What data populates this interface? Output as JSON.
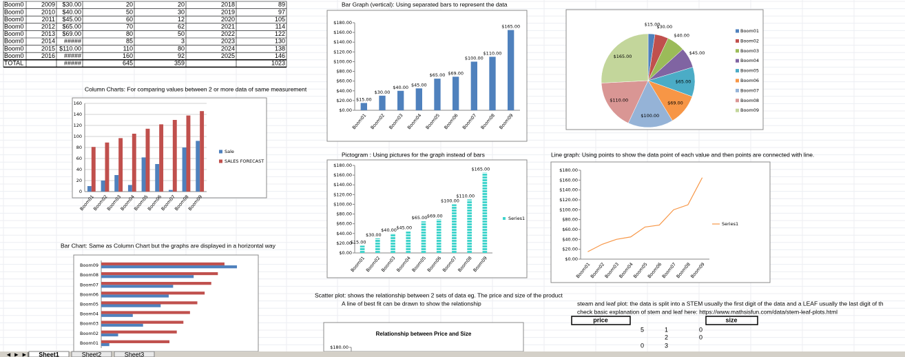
{
  "sheet": {
    "table": {
      "rows": [
        [
          "Boom0",
          "2009",
          "$30.00",
          "20",
          "20",
          "2018",
          "89"
        ],
        [
          "Boom0",
          "2010",
          "$40.00",
          "50",
          "30",
          "2019",
          "97"
        ],
        [
          "Boom0",
          "2011",
          "$45.00",
          "60",
          "12",
          "2020",
          "105"
        ],
        [
          "Boom0",
          "2012",
          "$65.00",
          "70",
          "62",
          "2021",
          "114"
        ],
        [
          "Boom0",
          "2013",
          "$69.00",
          "80",
          "50",
          "2022",
          "122"
        ],
        [
          "Boom0",
          "2014",
          "#####",
          "85",
          "3",
          "2023",
          "130"
        ],
        [
          "Boom0",
          "2015",
          "$110.00",
          "110",
          "80",
          "2024",
          "138"
        ],
        [
          "Boom0",
          "2016",
          "#####",
          "160",
          "92",
          "2025",
          "146"
        ],
        [
          "TOTAL",
          null,
          "#####",
          "645",
          "359",
          null,
          "1023"
        ]
      ]
    },
    "captions": [
      "Column Charts: For comparing values between 2 or more data of same measurement",
      "Bar Graph (vertical): Using separated bars to represent the data",
      "Pictogram : Using pictures for the graph instead of bars",
      "Line graph: Using points to show the data point of each value and then points are connected with line.",
      "Bar Chart: Same as Column Chart but the graphs are displayed in a horizontal way",
      "Scatter plot: shows the relationship between 2 sets of data eg. The price and size of the product",
      "A line of best fit can be drawn to show the relationship",
      "steam and leaf plot: the data is split into a STEM usually the first digit of the data and a LEAF usually the last digit of th",
      "check basic explanation of stem and leaf here: https://www.mathsisfun.com/data/stem-leaf-plots.html"
    ],
    "stem_leaf": {
      "headers": [
        "price",
        "size"
      ],
      "rows": [
        [
          "5",
          "1",
          "0"
        ],
        [
          null,
          "2",
          "0"
        ],
        [
          "0",
          "3",
          null
        ]
      ]
    },
    "tabs": [
      "Sheet1",
      "Sheet2",
      "Sheet3"
    ]
  },
  "chart_data": [
    {
      "type": "bar",
      "categories": [
        "Boom01",
        "Boom02",
        "Boom03",
        "Boom04",
        "Boom05",
        "Boom06",
        "Boom07",
        "Boom08",
        "Boom09"
      ],
      "series": [
        {
          "name": "Sale",
          "color": "#4f81bd",
          "values": [
            10,
            20,
            30,
            12,
            62,
            50,
            3,
            80,
            92
          ]
        },
        {
          "name": "SALES FORECAST",
          "color": "#c0504d",
          "values": [
            81,
            89,
            97,
            105,
            114,
            122,
            130,
            138,
            146
          ]
        }
      ],
      "ylim": [
        0,
        160
      ],
      "yticks": [
        0,
        20,
        40,
        60,
        80,
        100,
        120,
        140,
        160
      ],
      "grid": true
    },
    {
      "type": "bar",
      "categories": [
        "Boom01",
        "Boom02",
        "Boom03",
        "Boom04",
        "Boom05",
        "Boom06",
        "Boom07",
        "Boom08",
        "Boom09"
      ],
      "series": [
        {
          "color": "#4f81bd",
          "values": [
            15,
            30,
            40,
            45,
            65,
            69,
            100,
            110,
            165
          ],
          "value_labels": [
            "$15.00",
            "$30.00",
            "$40.00",
            "$45.00",
            "$65.00",
            "$69.00",
            "$100.00",
            "$110.00",
            "$165.00"
          ]
        }
      ],
      "ylim": [
        0,
        180
      ],
      "yticks": [
        {
          "value": 0,
          "label": "$0.00"
        },
        {
          "value": 20,
          "label": "$20.00"
        },
        {
          "value": 40,
          "label": "$40.00"
        },
        {
          "value": 60,
          "label": "$60.00"
        },
        {
          "value": 80,
          "label": "$80.00"
        },
        {
          "value": 100,
          "label": "$100.00"
        },
        {
          "value": 120,
          "label": "$120.00"
        },
        {
          "value": 140,
          "label": "$140.00"
        },
        {
          "value": 160,
          "label": "$160.00"
        },
        {
          "value": 180,
          "label": "$180.00"
        }
      ],
      "grid": false
    },
    {
      "type": "pie",
      "categories": [
        "Boom01",
        "Boom02",
        "Boom03",
        "Boom04",
        "Boom05",
        "Boom06",
        "Boom07",
        "Boom08",
        "Boom09"
      ],
      "values": [
        15,
        30,
        40,
        45,
        65,
        69,
        100,
        110,
        165
      ],
      "value_labels": [
        "$15.00",
        "$30.00",
        "$40.00",
        "$45.00",
        "$65.00",
        "$69.00",
        "$100.00",
        "$110.00",
        "$165.00"
      ],
      "colors": [
        "#4f81bd",
        "#c0504d",
        "#9bbb59",
        "#8064a2",
        "#4bacc6",
        "#f79646",
        "#95b3d7",
        "#d99694",
        "#c3d69b"
      ],
      "legend": "right"
    },
    {
      "type": "pictogram",
      "categories": [
        "Boom01",
        "Boom02",
        "Boom03",
        "Boom04",
        "Boom05",
        "Boom06",
        "Boom07",
        "Boom08",
        "Boom09"
      ],
      "series": [
        {
          "name": "Series1",
          "color": "#40d4cc",
          "values": [
            15,
            30,
            40,
            45,
            65,
            69,
            100,
            110,
            165
          ],
          "value_labels": [
            "$15.00",
            "$30.00",
            "$40.00",
            "$45.00",
            "$65.00",
            "$69.00",
            "$100.00",
            "$110.00",
            "$165.00"
          ]
        }
      ],
      "ylim": [
        0,
        180
      ],
      "yticks": [
        {
          "value": 0,
          "label": "$0.00"
        },
        {
          "value": 20,
          "label": "$20.00"
        },
        {
          "value": 40,
          "label": "$40.00"
        },
        {
          "value": 60,
          "label": "$60.00"
        },
        {
          "value": 80,
          "label": "$80.00"
        },
        {
          "value": 100,
          "label": "$100.00"
        },
        {
          "value": 120,
          "label": "$120.00"
        },
        {
          "value": 140,
          "label": "$140.00"
        },
        {
          "value": 160,
          "label": "$160.00"
        },
        {
          "value": 180,
          "label": "$180.00"
        }
      ],
      "grid": false
    },
    {
      "type": "line",
      "categories": [
        "Boom01",
        "Boom02",
        "Boom03",
        "Boom04",
        "Boom05",
        "Boom06",
        "Boom07",
        "Boom08",
        "Boom09"
      ],
      "series": [
        {
          "name": "Series1",
          "color": "#f79646",
          "values": [
            15,
            30,
            40,
            45,
            65,
            69,
            100,
            110,
            165
          ]
        }
      ],
      "ylim": [
        0,
        180
      ],
      "yticks": [
        {
          "value": 0,
          "label": "$0.00"
        },
        {
          "value": 20,
          "label": "$20.00"
        },
        {
          "value": 40,
          "label": "$40.00"
        },
        {
          "value": 60,
          "label": "$60.00"
        },
        {
          "value": 80,
          "label": "$80.00"
        },
        {
          "value": 100,
          "label": "$100.00"
        },
        {
          "value": 120,
          "label": "$120.00"
        },
        {
          "value": 140,
          "label": "$140.00"
        },
        {
          "value": 160,
          "label": "$160.00"
        },
        {
          "value": 180,
          "label": "$180.00"
        }
      ],
      "grid": false
    },
    {
      "type": "barh",
      "categories": [
        "Boom01",
        "Boom02",
        "Boom03",
        "Boom04",
        "Boom05",
        "Boom06",
        "Boom07",
        "Boom08",
        "Boom09"
      ],
      "series": [
        {
          "color": "#4f81bd",
          "values": [
            11,
            23,
            57,
            43,
            81,
            92,
            98,
            126,
            185
          ]
        },
        {
          "color": "#c0504d",
          "values": [
            93,
            103,
            112,
            121,
            131,
            141,
            150,
            159,
            168
          ]
        }
      ],
      "xlim": [
        0,
        200
      ]
    },
    {
      "type": "scatter",
      "title": "Relationship between Price and Size",
      "ylim": [
        0,
        180
      ],
      "yticks": [
        {
          "value": 180,
          "label": "$180.00"
        }
      ]
    }
  ]
}
